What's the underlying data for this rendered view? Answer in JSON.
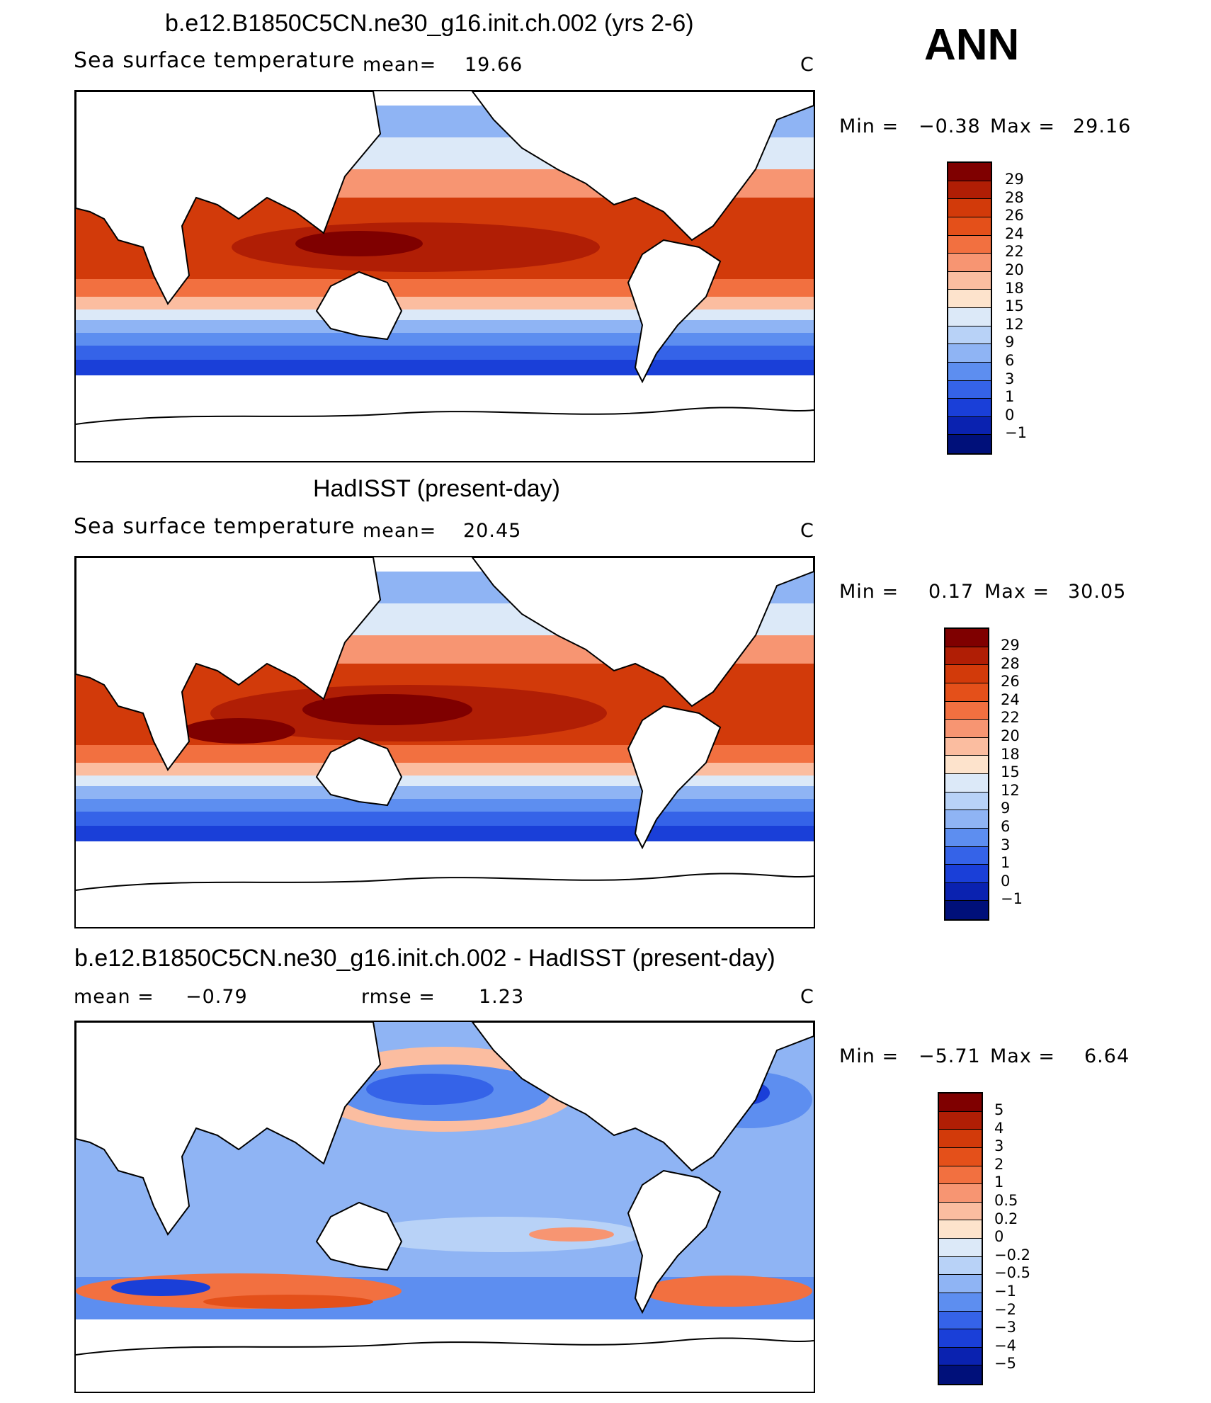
{
  "season": "ANN",
  "unit": "C",
  "panels": [
    {
      "title": "b.e12.B1850C5CN.ne30_g16.init.ch.002 (yrs 2-6)",
      "variable": "Sea surface temperature",
      "mean_label": "mean=",
      "mean_value": "19.66",
      "min_label": "Min =",
      "min_value": "−0.38",
      "max_label": "Max =",
      "max_value": "29.16"
    },
    {
      "title": "HadISST (present-day)",
      "variable": "Sea surface temperature",
      "mean_label": "mean=",
      "mean_value": "20.45",
      "min_label": "Min =",
      "min_value": "0.17",
      "max_label": "Max =",
      "max_value": "30.05"
    },
    {
      "title": "b.e12.B1850C5CN.ne30_g16.init.ch.002 - HadISST (present-day)",
      "mean_label": "mean =",
      "mean_value": "−0.79",
      "rmse_label": "rmse =",
      "rmse_value": "1.23",
      "min_label": "Min =",
      "min_value": "−5.71",
      "max_label": "Max =",
      "max_value": "6.64"
    }
  ],
  "colorbar_sst": {
    "labels": [
      "29",
      "28",
      "26",
      "24",
      "22",
      "20",
      "18",
      "15",
      "12",
      "9",
      "6",
      "3",
      "1",
      "0",
      "−1"
    ],
    "colors": [
      "#7f0000",
      "#b01e05",
      "#d23a0a",
      "#e4501a",
      "#f27040",
      "#f79572",
      "#fbbda0",
      "#fde3cc",
      "#dce9f8",
      "#b8d2f7",
      "#8fb4f4",
      "#5d8ef0",
      "#3563e8",
      "#1a3fd8",
      "#0a22b0",
      "#00107a"
    ]
  },
  "colorbar_diff": {
    "labels": [
      "5",
      "4",
      "3",
      "2",
      "1",
      "0.5",
      "0.2",
      "0",
      "−0.2",
      "−0.5",
      "−1",
      "−2",
      "−3",
      "−4",
      "−5"
    ],
    "colors": [
      "#7f0000",
      "#b01e05",
      "#d23a0a",
      "#e4501a",
      "#f27040",
      "#f79572",
      "#fbbda0",
      "#fde3cc",
      "#dce9f8",
      "#b8d2f7",
      "#8fb4f4",
      "#5d8ef0",
      "#3563e8",
      "#1a3fd8",
      "#0a22b0",
      "#00107a"
    ]
  }
}
